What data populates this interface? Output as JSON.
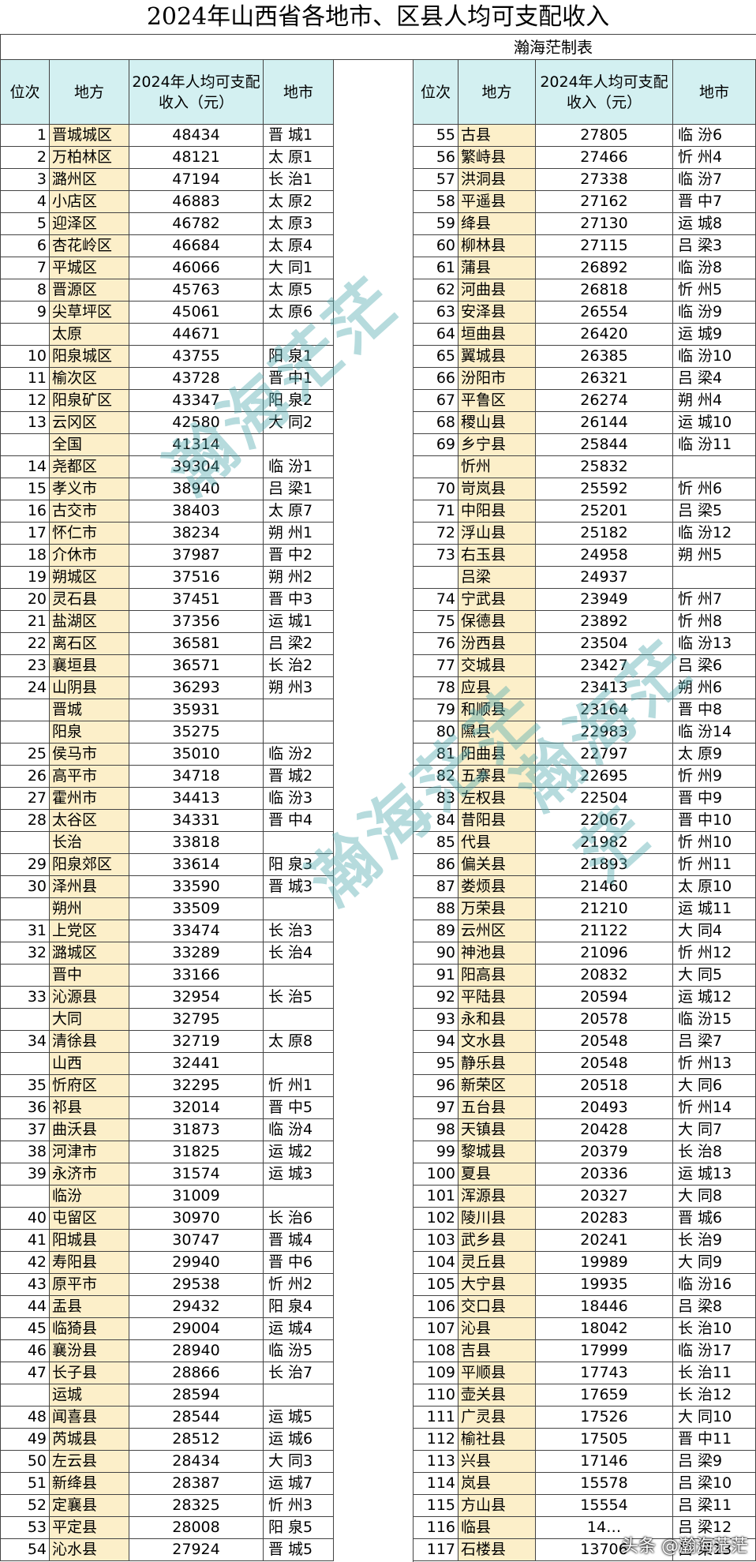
{
  "title": "2024年山西省各地市、区县人均可支配收入",
  "author": "瀚海茫制表",
  "headers": [
    "位次",
    "地方",
    "2024年人均可支配收入（元）",
    "地市"
  ],
  "left_rows": [
    [
      1,
      "晋城城区",
      48434,
      "晋 城1"
    ],
    [
      2,
      "万柏林区",
      48121,
      "太 原1"
    ],
    [
      3,
      "潞州区",
      47194,
      "长 治1"
    ],
    [
      4,
      "小店区",
      46883,
      "太 原2"
    ],
    [
      5,
      "迎泽区",
      46782,
      "太 原3"
    ],
    [
      6,
      "杏花岭区",
      46684,
      "太 原4"
    ],
    [
      7,
      "平城区",
      46066,
      "大 同1"
    ],
    [
      8,
      "晋源区",
      45763,
      "太 原5"
    ],
    [
      9,
      "尖草坪区",
      45061,
      "太 原6"
    ],
    [
      null,
      "太原",
      44671,
      null
    ],
    [
      10,
      "阳泉城区",
      43755,
      "阳 泉1"
    ],
    [
      11,
      "榆次区",
      43728,
      "晋 中1"
    ],
    [
      12,
      "阳泉矿区",
      43347,
      "阳 泉2"
    ],
    [
      13,
      "云冈区",
      42580,
      "大 同2"
    ],
    [
      null,
      "全国",
      41314,
      null
    ],
    [
      14,
      "尧都区",
      39304,
      "临 汾1"
    ],
    [
      15,
      "孝义市",
      38940,
      "吕 梁1"
    ],
    [
      16,
      "古交市",
      38403,
      "太 原7"
    ],
    [
      17,
      "怀仁市",
      38234,
      "朔 州1"
    ],
    [
      18,
      "介休市",
      37987,
      "晋 中2"
    ],
    [
      19,
      "朔城区",
      37516,
      "朔 州2"
    ],
    [
      20,
      "灵石县",
      37451,
      "晋 中3"
    ],
    [
      21,
      "盐湖区",
      37356,
      "运 城1"
    ],
    [
      22,
      "离石区",
      36581,
      "吕 梁2"
    ],
    [
      23,
      "襄垣县",
      36571,
      "长 治2"
    ],
    [
      24,
      "山阴县",
      36293,
      "朔 州3"
    ],
    [
      null,
      "晋城",
      35931,
      null
    ],
    [
      null,
      "阳泉",
      35275,
      null
    ],
    [
      25,
      "侯马市",
      35010,
      "临 汾2"
    ],
    [
      26,
      "高平市",
      34718,
      "晋 城2"
    ],
    [
      27,
      "霍州市",
      34413,
      "临 汾3"
    ],
    [
      28,
      "太谷区",
      34331,
      "晋 中4"
    ],
    [
      null,
      "长治",
      33818,
      null
    ],
    [
      29,
      "阳泉郊区",
      33614,
      "阳 泉3"
    ],
    [
      30,
      "泽州县",
      33590,
      "晋 城3"
    ],
    [
      null,
      "朔州",
      33509,
      null
    ],
    [
      31,
      "上党区",
      33474,
      "长 治3"
    ],
    [
      32,
      "潞城区",
      33289,
      "长 治4"
    ],
    [
      null,
      "晋中",
      33166,
      null
    ],
    [
      33,
      "沁源县",
      32954,
      "长 治5"
    ],
    [
      null,
      "大同",
      32795,
      null
    ],
    [
      34,
      "清徐县",
      32719,
      "太 原8"
    ],
    [
      null,
      "山西",
      32441,
      null
    ],
    [
      35,
      "忻府区",
      32295,
      "忻 州1"
    ],
    [
      36,
      "祁县",
      32014,
      "晋 中5"
    ],
    [
      37,
      "曲沃县",
      31873,
      "临 汾4"
    ],
    [
      38,
      "河津市",
      31825,
      "运 城2"
    ],
    [
      39,
      "永济市",
      31574,
      "运 城3"
    ],
    [
      null,
      "临汾",
      31009,
      null
    ],
    [
      40,
      "屯留区",
      30970,
      "长 治6"
    ],
    [
      41,
      "阳城县",
      30747,
      "晋 城4"
    ],
    [
      42,
      "寿阳县",
      29940,
      "晋 中6"
    ],
    [
      43,
      "原平市",
      29538,
      "忻 州2"
    ],
    [
      44,
      "盂县",
      29432,
      "阳 泉4"
    ],
    [
      45,
      "临猗县",
      29004,
      "运 城4"
    ],
    [
      46,
      "襄汾县",
      28940,
      "临 汾5"
    ],
    [
      47,
      "长子县",
      28866,
      "长 治7"
    ],
    [
      null,
      "运城",
      28594,
      null
    ],
    [
      48,
      "闻喜县",
      28544,
      "运 城5"
    ],
    [
      49,
      "芮城县",
      28512,
      "运 城6"
    ],
    [
      50,
      "左云县",
      28434,
      "大 同3"
    ],
    [
      51,
      "新绛县",
      28387,
      "运 城7"
    ],
    [
      52,
      "定襄县",
      28325,
      "忻 州3"
    ],
    [
      53,
      "平定县",
      28008,
      "阳 泉5"
    ],
    [
      54,
      "沁水县",
      27924,
      "晋 城5"
    ]
  ],
  "right_rows": [
    [
      55,
      "古县",
      27805,
      "临 汾6"
    ],
    [
      56,
      "繁峙县",
      27466,
      "忻 州4"
    ],
    [
      57,
      "洪洞县",
      27338,
      "临 汾7"
    ],
    [
      58,
      "平遥县",
      27162,
      "晋 中7"
    ],
    [
      59,
      "绛县",
      27130,
      "运 城8"
    ],
    [
      60,
      "柳林县",
      27115,
      "吕 梁3"
    ],
    [
      61,
      "蒲县",
      26892,
      "临 汾8"
    ],
    [
      62,
      "河曲县",
      26818,
      "忻 州5"
    ],
    [
      63,
      "安泽县",
      26554,
      "临 汾9"
    ],
    [
      64,
      "垣曲县",
      26420,
      "运 城9"
    ],
    [
      65,
      "翼城县",
      26385,
      "临 汾10"
    ],
    [
      66,
      "汾阳市",
      26321,
      "吕 梁4"
    ],
    [
      67,
      "平鲁区",
      26274,
      "朔 州4"
    ],
    [
      68,
      "稷山县",
      26144,
      "运 城10"
    ],
    [
      69,
      "乡宁县",
      25844,
      "临 汾11"
    ],
    [
      null,
      "忻州",
      25832,
      null
    ],
    [
      70,
      "岢岚县",
      25592,
      "忻 州6"
    ],
    [
      71,
      "中阳县",
      25201,
      "吕 梁5"
    ],
    [
      72,
      "浮山县",
      25182,
      "临 汾12"
    ],
    [
      73,
      "右玉县",
      24958,
      "朔 州5"
    ],
    [
      null,
      "吕梁",
      24937,
      null
    ],
    [
      74,
      "宁武县",
      23949,
      "忻 州7"
    ],
    [
      75,
      "保德县",
      23892,
      "忻 州8"
    ],
    [
      76,
      "汾西县",
      23504,
      "临 汾13"
    ],
    [
      77,
      "交城县",
      23427,
      "吕 梁6"
    ],
    [
      78,
      "应县",
      23413,
      "朔 州6"
    ],
    [
      79,
      "和顺县",
      23164,
      "晋 中8"
    ],
    [
      80,
      "隰县",
      22983,
      "临 汾14"
    ],
    [
      81,
      "阳曲县",
      22797,
      "太 原9"
    ],
    [
      82,
      "五寨县",
      22695,
      "忻 州9"
    ],
    [
      83,
      "左权县",
      22504,
      "晋 中9"
    ],
    [
      84,
      "昔阳县",
      22067,
      "晋 中10"
    ],
    [
      85,
      "代县",
      21982,
      "忻 州10"
    ],
    [
      86,
      "偏关县",
      21893,
      "忻 州11"
    ],
    [
      87,
      "娄烦县",
      21460,
      "太 原10"
    ],
    [
      88,
      "万荣县",
      21210,
      "运 城11"
    ],
    [
      89,
      "云州区",
      21122,
      "大 同4"
    ],
    [
      90,
      "神池县",
      21096,
      "忻 州12"
    ],
    [
      91,
      "阳高县",
      20832,
      "大 同5"
    ],
    [
      92,
      "平陆县",
      20594,
      "运 城12"
    ],
    [
      93,
      "永和县",
      20578,
      "临 汾15"
    ],
    [
      94,
      "文水县",
      20548,
      "吕 梁7"
    ],
    [
      95,
      "静乐县",
      20548,
      "忻 州13"
    ],
    [
      96,
      "新荣区",
      20518,
      "大 同6"
    ],
    [
      97,
      "五台县",
      20493,
      "忻 州14"
    ],
    [
      98,
      "天镇县",
      20428,
      "大 同7"
    ],
    [
      99,
      "黎城县",
      20379,
      "长 治8"
    ],
    [
      100,
      "夏县",
      20336,
      "运 城13"
    ],
    [
      101,
      "浑源县",
      20327,
      "大 同8"
    ],
    [
      102,
      "陵川县",
      20283,
      "晋 城6"
    ],
    [
      103,
      "武乡县",
      20241,
      "长 治9"
    ],
    [
      104,
      "灵丘县",
      19989,
      "大 同9"
    ],
    [
      105,
      "大宁县",
      19935,
      "临 汾16"
    ],
    [
      106,
      "交口县",
      18446,
      "吕 梁8"
    ],
    [
      107,
      "沁县",
      18042,
      "长 治10"
    ],
    [
      108,
      "吉县",
      17999,
      "临 汾17"
    ],
    [
      109,
      "平顺县",
      17743,
      "长 治11"
    ],
    [
      110,
      "壶关县",
      17659,
      "长 治12"
    ],
    [
      111,
      "广灵县",
      17526,
      "大 同10"
    ],
    [
      112,
      "榆社县",
      17505,
      "晋 中11"
    ],
    [
      113,
      "兴县",
      17146,
      "吕 梁9"
    ],
    [
      114,
      "岚县",
      15578,
      "吕 梁10"
    ],
    [
      115,
      "方山县",
      15554,
      "吕 梁11"
    ],
    [
      116,
      "临县",
      "14…",
      "吕 梁12"
    ],
    [
      117,
      "石楼县",
      13706,
      "吕 梁13"
    ]
  ],
  "watermark": "瀚海茫茫",
  "footer": "头条 @瀚海茫茫"
}
